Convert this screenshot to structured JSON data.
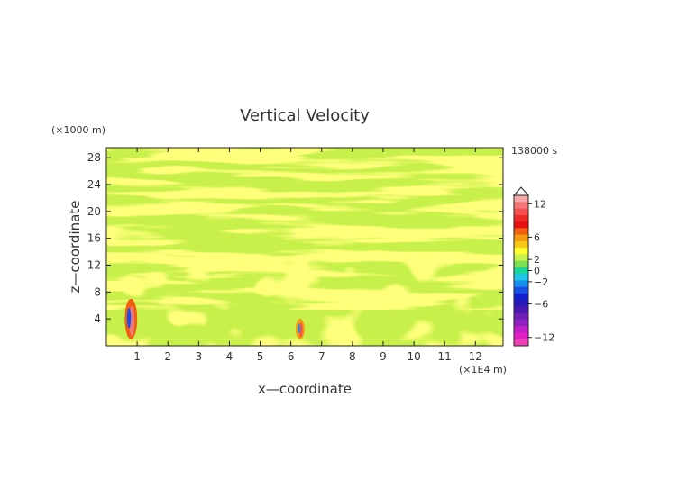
{
  "chart_data": {
    "type": "heatmap",
    "title": "Vertical Velocity",
    "xlabel": "x—coordinate",
    "ylabel": "z—coordinate",
    "x_unit": "(×1E4 m)",
    "y_unit": "(×1000 m)",
    "timestamp": "138000 s",
    "xlim": [
      0,
      12.9
    ],
    "ylim": [
      0,
      29.5
    ],
    "x_ticks": [
      1,
      2,
      3,
      4,
      5,
      6,
      7,
      8,
      9,
      10,
      11,
      12
    ],
    "x_tick_labels": [
      "1",
      "2",
      "3",
      "4",
      "5",
      "6",
      "7",
      "8",
      "9",
      "10",
      "11",
      "12"
    ],
    "y_ticks": [
      4,
      8,
      12,
      16,
      20,
      24,
      28
    ],
    "y_tick_labels": [
      "4",
      "8",
      "12",
      "16",
      "20",
      "24",
      "28"
    ],
    "background_level_color": "#c8f04a",
    "colorbar": {
      "labels": [
        {
          "value": 12,
          "text": "12"
        },
        {
          "value": 6,
          "text": "6"
        },
        {
          "value": 2,
          "text": "2"
        },
        {
          "value": 0,
          "text": "0"
        },
        {
          "value": -2,
          "text": "−2"
        },
        {
          "value": -6,
          "text": "−6"
        },
        {
          "value": -12,
          "text": "−12"
        }
      ],
      "bands": [
        {
          "value": 13,
          "color": "#f4a8a8"
        },
        {
          "value": 11,
          "color": "#f47878"
        },
        {
          "value": 9,
          "color": "#f45050"
        },
        {
          "value": 7,
          "color": "#f02828"
        },
        {
          "value": 5,
          "color": "#e81010"
        },
        {
          "value": 4,
          "color": "#f06010"
        },
        {
          "value": 3,
          "color": "#f49a10"
        },
        {
          "value": 2,
          "color": "#f8c818"
        },
        {
          "value": 1,
          "color": "#ffff30"
        },
        {
          "value": 0,
          "color": "#c8f04a"
        },
        {
          "value": -1,
          "color": "#7ce050"
        },
        {
          "value": -2,
          "color": "#18d8a0"
        },
        {
          "value": -3,
          "color": "#20c8e8"
        },
        {
          "value": -4,
          "color": "#1890f0"
        },
        {
          "value": -5,
          "color": "#1850e8"
        },
        {
          "value": -6,
          "color": "#1020d0"
        },
        {
          "value": -7,
          "color": "#2818b8"
        },
        {
          "value": -8,
          "color": "#4818b0"
        },
        {
          "value": -9,
          "color": "#7020b8"
        },
        {
          "value": -10,
          "color": "#9020c0"
        },
        {
          "value": -11,
          "color": "#c020c8"
        },
        {
          "value": -12,
          "color": "#e020c0"
        },
        {
          "value": -13,
          "color": "#f040b8"
        }
      ]
    },
    "features": [
      {
        "name": "yellow positive bands (~+1)",
        "z_range_approx": [
          4,
          29
        ],
        "value_approx": 1
      },
      {
        "name": "updraft/downdraft pair",
        "x": 0.8,
        "z_range": [
          1,
          7
        ],
        "max_approx": 10,
        "min_approx": -5
      },
      {
        "name": "updraft/downdraft pair",
        "x": 6.3,
        "z_range": [
          1,
          4
        ],
        "max_approx": 8,
        "min_approx": -4
      }
    ]
  }
}
